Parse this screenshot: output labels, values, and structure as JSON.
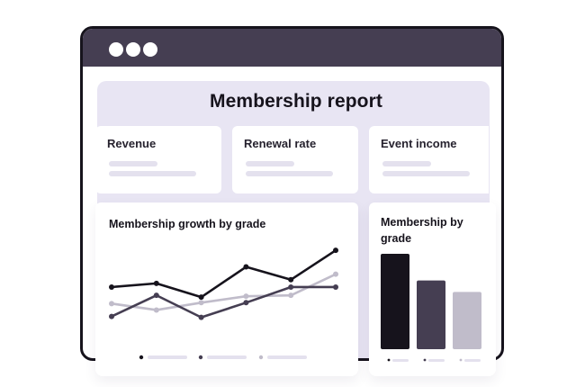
{
  "report": {
    "title": "Membership report"
  },
  "kpis": [
    {
      "label": "Revenue"
    },
    {
      "label": "Renewal rate"
    },
    {
      "label": "Event income"
    }
  ],
  "colors": {
    "frame": "#16131c",
    "titlebar": "#453e52",
    "panel": "#e8e5f3",
    "series_dark": "#16131c",
    "series_mid": "#453e52",
    "series_light": "#c0bcca",
    "skeleton": "#e4e1ee"
  },
  "window": {
    "controls": [
      "window-dot-icon",
      "window-dot-icon",
      "window-dot-icon"
    ]
  },
  "chart_data": [
    {
      "type": "line",
      "title": "Membership growth by grade",
      "x": [
        1,
        2,
        3,
        4,
        5,
        6
      ],
      "ylim": [
        0,
        100
      ],
      "series": [
        {
          "color": "#16131c",
          "values": [
            52,
            56,
            41,
            74,
            60,
            92
          ]
        },
        {
          "color": "#453e52",
          "values": [
            20,
            43,
            19,
            35,
            52,
            52
          ]
        },
        {
          "color": "#c0bcca",
          "values": [
            34,
            27,
            35,
            42,
            43,
            66
          ]
        }
      ],
      "legend": "bottom"
    },
    {
      "type": "bar",
      "title": "Membership by grade",
      "categories": [
        "",
        "",
        ""
      ],
      "values": [
        100,
        72,
        60
      ],
      "colors": [
        "#16131c",
        "#453e52",
        "#c0bcca"
      ],
      "ylim": [
        0,
        100
      ],
      "legend": "bottom"
    }
  ]
}
